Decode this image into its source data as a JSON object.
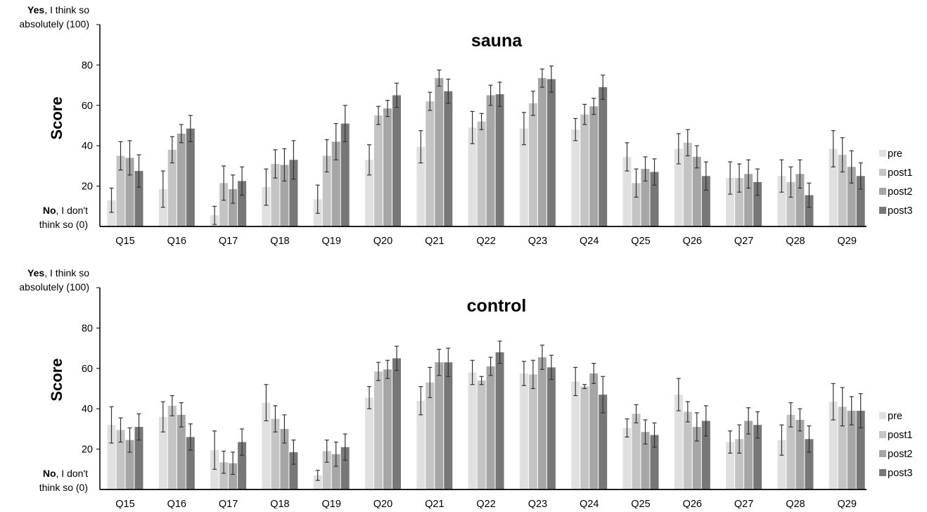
{
  "colors": {
    "pre": "#e0e0e0",
    "post1": "#c4c4c4",
    "post2": "#a6a6a6",
    "post3": "#777777",
    "axis": "#000000",
    "errorbar": "#333333"
  },
  "chart_data": [
    {
      "type": "bar",
      "title": "sauna",
      "ylabel": "Score",
      "y_top_label_bold": "Yes",
      "y_top_label_rest": ", I think so",
      "y_top_label_line2": "absolutely (100)",
      "y_bottom_label_bold": "No",
      "y_bottom_label_rest": ", I don't",
      "y_bottom_label_line2": "think so (0)",
      "ylim": [
        0,
        100
      ],
      "yticks": [
        "20",
        "40",
        "60",
        "80"
      ],
      "legend_position": "right",
      "categories": [
        "Q15",
        "Q16",
        "Q17",
        "Q18",
        "Q19",
        "Q20",
        "Q21",
        "Q22",
        "Q23",
        "Q24",
        "Q25",
        "Q26",
        "Q27",
        "Q28",
        "Q29"
      ],
      "series": [
        {
          "name": "pre",
          "values": [
            13,
            18.5,
            5.5,
            19.5,
            13.5,
            33,
            39.5,
            49,
            48.5,
            48,
            34.5,
            38.5,
            24,
            25,
            38.5
          ],
          "errors": [
            6,
            9,
            4.5,
            9,
            7,
            7.5,
            8,
            8,
            8,
            5.5,
            7,
            7.5,
            8,
            8,
            9
          ]
        },
        {
          "name": "post1",
          "values": [
            35,
            38,
            21.5,
            31,
            35,
            55,
            62,
            52,
            61,
            55.5,
            21.5,
            41.5,
            24,
            22,
            35.5
          ],
          "errors": [
            7,
            6.5,
            8.5,
            7,
            8,
            4.5,
            4.5,
            4,
            6,
            5,
            7,
            6.5,
            7,
            7.5,
            8.5
          ]
        },
        {
          "name": "post2",
          "values": [
            34,
            46,
            18.5,
            30.5,
            42,
            58.5,
            73.5,
            65,
            73.5,
            59.5,
            28.5,
            34.5,
            26,
            26,
            29.5
          ],
          "errors": [
            8.5,
            4.5,
            7,
            8,
            9,
            4,
            4,
            5,
            4.5,
            4,
            6,
            5.5,
            7,
            7,
            8
          ]
        },
        {
          "name": "post3",
          "values": [
            27.5,
            48.5,
            22.5,
            33,
            51,
            65,
            67,
            65.5,
            73,
            69,
            27,
            25,
            22,
            15.5,
            25
          ],
          "errors": [
            8,
            6.5,
            7,
            9.5,
            9,
            6,
            6,
            6,
            6.5,
            6,
            6.5,
            7,
            6.5,
            6,
            6.5
          ]
        }
      ]
    },
    {
      "type": "bar",
      "title": "control",
      "ylabel": "Score",
      "y_top_label_bold": "Yes",
      "y_top_label_rest": ", I think so",
      "y_top_label_line2": "absolutely (100)",
      "y_bottom_label_bold": "No",
      "y_bottom_label_rest": ", I don't",
      "y_bottom_label_line2": "think so (0)",
      "ylim": [
        0,
        100
      ],
      "yticks": [
        "20",
        "40",
        "60",
        "80"
      ],
      "legend_position": "right",
      "categories": [
        "Q15",
        "Q16",
        "Q17",
        "Q18",
        "Q19",
        "Q20",
        "Q21",
        "Q22",
        "Q23",
        "Q24",
        "Q25",
        "Q26",
        "Q27",
        "Q28",
        "Q29"
      ],
      "series": [
        {
          "name": "pre",
          "values": [
            32,
            36,
            19.5,
            43,
            7,
            45.5,
            44,
            58,
            57.5,
            53.5,
            30.5,
            47,
            23.5,
            24.5,
            43.5
          ],
          "errors": [
            9,
            7.5,
            9.5,
            9,
            2.5,
            5.5,
            7,
            6,
            6,
            7,
            4.5,
            8,
            5.5,
            7.5,
            9
          ]
        },
        {
          "name": "post1",
          "values": [
            29.5,
            41.5,
            13.5,
            35,
            19,
            58.5,
            53,
            54,
            57,
            51,
            37.5,
            38.5,
            25,
            37,
            41
          ],
          "errors": [
            6,
            5,
            5.5,
            6.5,
            5.5,
            4.5,
            7.5,
            2,
            7,
            1,
            4.5,
            5,
            7,
            6,
            9.5
          ]
        },
        {
          "name": "post2",
          "values": [
            24.5,
            37,
            13,
            30,
            17.5,
            59.5,
            63,
            61,
            65.5,
            57.5,
            28.5,
            31,
            34,
            34.5,
            39
          ],
          "errors": [
            6,
            6,
            5.5,
            7,
            6,
            4.5,
            6.5,
            4.5,
            6,
            5,
            6,
            7,
            6.5,
            5.5,
            7
          ]
        },
        {
          "name": "post3",
          "values": [
            31,
            26,
            23.5,
            18.5,
            21,
            65,
            63,
            68,
            60.5,
            47,
            27,
            34,
            32,
            25,
            39
          ],
          "errors": [
            6.5,
            6.5,
            6.5,
            6,
            6.5,
            6,
            7,
            5.5,
            6,
            9,
            6,
            7.5,
            6.5,
            6.5,
            8.5
          ]
        }
      ]
    }
  ]
}
